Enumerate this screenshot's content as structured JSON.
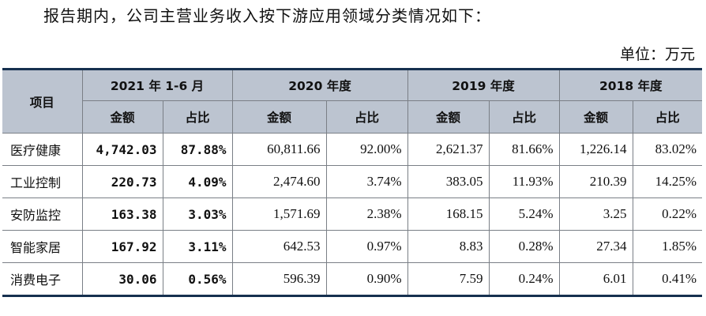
{
  "intro_text": "报告期内，公司主营业务收入按下游应用领域分类情况如下：",
  "unit_text": "单位：万元",
  "table": {
    "item_header": "项目",
    "periods": [
      "2021 年 1-6 月",
      "2020 年度",
      "2019 年度",
      "2018 年度"
    ],
    "sub_headers": [
      "金额",
      "占比"
    ],
    "rows": [
      {
        "label": "医疗健康",
        "cells": [
          "4,742.03",
          "87.88%",
          "60,811.66",
          "92.00%",
          "2,621.37",
          "81.66%",
          "1,226.14",
          "83.02%"
        ]
      },
      {
        "label": "工业控制",
        "cells": [
          "220.73",
          "4.09%",
          "2,474.60",
          "3.74%",
          "383.05",
          "11.93%",
          "210.39",
          "14.25%"
        ]
      },
      {
        "label": "安防监控",
        "cells": [
          "163.38",
          "3.03%",
          "1,571.69",
          "2.38%",
          "168.15",
          "5.24%",
          "3.25",
          "0.22%"
        ]
      },
      {
        "label": "智能家居",
        "cells": [
          "167.92",
          "3.11%",
          "642.53",
          "0.97%",
          "8.83",
          "0.28%",
          "27.34",
          "1.85%"
        ]
      },
      {
        "label": "消费电子",
        "cells": [
          "30.06",
          "0.56%",
          "596.39",
          "0.90%",
          "7.59",
          "0.24%",
          "6.01",
          "0.41%"
        ]
      }
    ]
  },
  "colors": {
    "header_bg": "#bcc4d0",
    "rule": "#16304f",
    "grid": "#7a7f86"
  }
}
